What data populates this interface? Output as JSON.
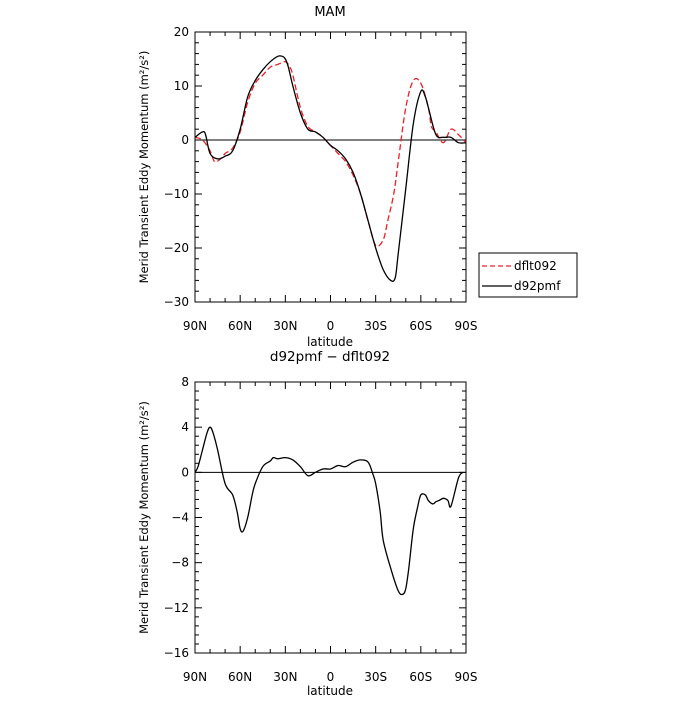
{
  "chart_data": [
    {
      "type": "line",
      "title": "MAM",
      "xlabel": "latitude",
      "ylabel": "Merid Transient Eddy Momentum (m²/s²)",
      "xlim": [
        90,
        -90
      ],
      "ylim": [
        -30,
        20
      ],
      "xticks": [
        90,
        60,
        30,
        0,
        -30,
        -60,
        -90
      ],
      "xtick_labels": [
        "90N",
        "60N",
        "30N",
        "0",
        "30S",
        "60S",
        "90S"
      ],
      "yticks": [
        -30,
        -20,
        -10,
        0,
        10,
        20
      ],
      "ytick_labels": [
        "−30",
        "−20",
        "−10",
        "0",
        "10",
        "20"
      ],
      "legend": {
        "placement": "right",
        "entries": [
          {
            "name": "dflt092",
            "color": "#e8202a",
            "style": "dashed"
          },
          {
            "name": "d92pmf",
            "color": "#000000",
            "style": "solid"
          }
        ]
      },
      "series": [
        {
          "name": "dflt092",
          "color": "#e8202a",
          "style": "dashed",
          "x": [
            90,
            85,
            80,
            77,
            73,
            70,
            65,
            60,
            55,
            50,
            45,
            40,
            35,
            30,
            27,
            25,
            20,
            15,
            10,
            5,
            0,
            -5,
            -10,
            -15,
            -20,
            -25,
            -30,
            -35,
            -38,
            -42,
            -45,
            -50,
            -55,
            -60,
            -65,
            -67,
            -70,
            -75,
            -80,
            -85,
            -90
          ],
          "y": [
            0.5,
            0,
            -2,
            -4,
            -3.5,
            -2.5,
            -1.5,
            1.5,
            7,
            10.5,
            12,
            13.5,
            14,
            14.5,
            13.5,
            12,
            6,
            2.5,
            1.5,
            0.5,
            -1,
            -2.5,
            -4,
            -6.5,
            -10,
            -15,
            -19.5,
            -18.5,
            -15,
            -10,
            -4,
            6,
            11,
            10.5,
            6,
            2.5,
            1.5,
            -0.5,
            2,
            1,
            -0.5
          ]
        },
        {
          "name": "d92pmf",
          "color": "#000000",
          "style": "solid",
          "x": [
            90,
            85,
            83,
            80,
            75,
            70,
            65,
            60,
            55,
            50,
            45,
            40,
            35,
            32,
            30,
            28,
            25,
            20,
            15,
            10,
            5,
            0,
            -5,
            -10,
            -15,
            -20,
            -25,
            -30,
            -35,
            -40,
            -43,
            -45,
            -50,
            -55,
            -60,
            -63,
            -65,
            -70,
            -75,
            -80,
            -85,
            -90
          ],
          "y": [
            0.5,
            1.5,
            1,
            -2.5,
            -3.5,
            -3,
            -2,
            2,
            8,
            11,
            13,
            14.5,
            15.5,
            15.5,
            15,
            13.5,
            10,
            5,
            2,
            1.5,
            0.5,
            -1,
            -2,
            -3.5,
            -6,
            -10,
            -15,
            -20,
            -24,
            -26,
            -25.5,
            -21,
            -9,
            3,
            9,
            8,
            6,
            1,
            0.5,
            0.5,
            -0.5,
            -0.5
          ]
        }
      ]
    },
    {
      "type": "line",
      "title": "d92pmf − dflt092",
      "xlabel": "latitude",
      "ylabel": "Merid Transient Eddy Momentum (m²/s²)",
      "xlim": [
        90,
        -90
      ],
      "ylim": [
        -16,
        8
      ],
      "xticks": [
        90,
        60,
        30,
        0,
        -30,
        -60,
        -90
      ],
      "xtick_labels": [
        "90N",
        "60N",
        "30N",
        "0",
        "30S",
        "60S",
        "90S"
      ],
      "yticks": [
        -16,
        -12,
        -8,
        -4,
        0,
        4,
        8
      ],
      "ytick_labels": [
        "−16",
        "−12",
        "−8",
        "−4",
        "0",
        "4",
        "8"
      ],
      "series": [
        {
          "color": "#000000",
          "style": "solid",
          "x": [
            90,
            88,
            85,
            82,
            80,
            78,
            75,
            70,
            65,
            62,
            60,
            58,
            55,
            52,
            50,
            45,
            40,
            38,
            35,
            30,
            25,
            20,
            15,
            10,
            5,
            0,
            -5,
            -10,
            -15,
            -20,
            -25,
            -28,
            -30,
            -33,
            -35,
            -40,
            -45,
            -48,
            -50,
            -52,
            -55,
            -58,
            -60,
            -63,
            -65,
            -68,
            -70,
            -72,
            -75,
            -78,
            -80,
            -85,
            -88
          ],
          "y": [
            0,
            0.5,
            2,
            3.5,
            4,
            3.5,
            2,
            -1,
            -2,
            -3.5,
            -5,
            -5.2,
            -4,
            -2,
            -1,
            0.5,
            1,
            1.3,
            1.2,
            1.3,
            1.1,
            0.5,
            -0.3,
            0,
            0.3,
            0.3,
            0.6,
            0.5,
            0.9,
            1.1,
            0.9,
            -0.1,
            -1,
            -3.5,
            -6,
            -8.5,
            -10.5,
            -10.8,
            -10.3,
            -8.5,
            -5,
            -3,
            -2,
            -2,
            -2.5,
            -2.8,
            -2.6,
            -2.5,
            -2.3,
            -2.5,
            -3,
            -0.5,
            0
          ]
        }
      ]
    }
  ]
}
